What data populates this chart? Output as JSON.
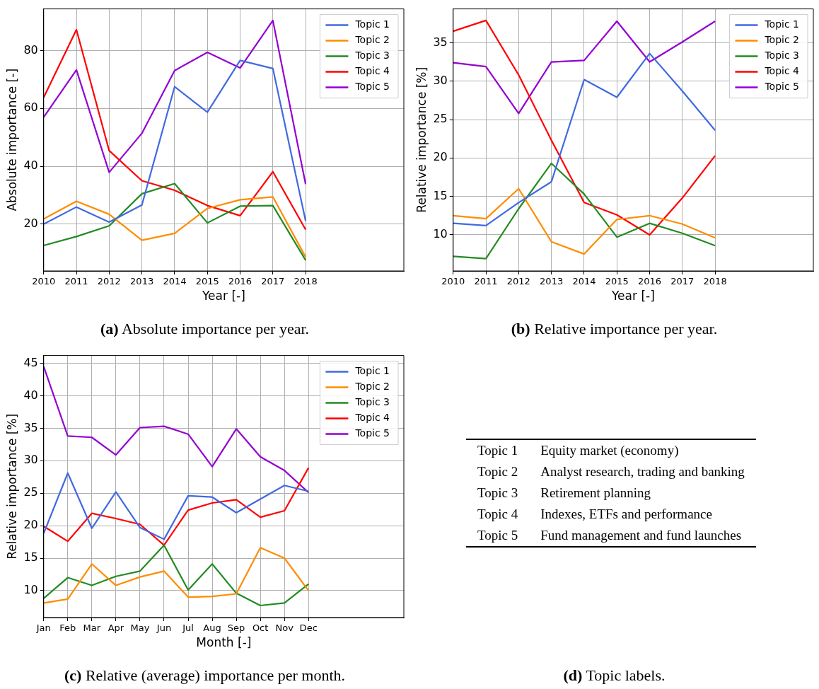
{
  "chart_data": [
    {
      "type": "line",
      "xlabel": "Year [-]",
      "ylabel": "Absolute importance [-]",
      "x": [
        2010,
        2011,
        2012,
        2013,
        2014,
        2015,
        2016,
        2017,
        2018
      ],
      "xlim": [
        2010,
        2021
      ],
      "xticks": [
        2010,
        2011,
        2012,
        2013,
        2014,
        2015,
        2016,
        2017,
        2018
      ],
      "ylim": [
        3.8,
        94.4
      ],
      "yticks": [
        20,
        40,
        60,
        80
      ],
      "grid": true,
      "legend": "top right",
      "annotations": [
        "(a) Absolute importance per year."
      ],
      "series": [
        {
          "name": "Topic 1",
          "color": "#4169e1",
          "values": [
            20.0,
            25.9,
            20.7,
            26.6,
            67.5,
            58.7,
            76.6,
            73.8,
            21.1
          ]
        },
        {
          "name": "Topic 2",
          "color": "#ff8c00",
          "values": [
            21.8,
            27.9,
            23.4,
            14.4,
            16.8,
            25.4,
            28.4,
            29.4,
            8.6
          ]
        },
        {
          "name": "Topic 3",
          "color": "#228b22",
          "values": [
            12.6,
            15.7,
            19.4,
            30.5,
            34.0,
            20.4,
            26.2,
            26.4,
            7.5
          ]
        },
        {
          "name": "Topic 4",
          "color": "#ff0000",
          "values": [
            63.8,
            87.2,
            45.4,
            35.0,
            31.7,
            26.4,
            22.9,
            38.1,
            18.1
          ]
        },
        {
          "name": "Topic 5",
          "color": "#9400d3",
          "values": [
            57.0,
            73.3,
            37.9,
            51.4,
            73.1,
            79.4,
            74.0,
            90.4,
            33.8
          ]
        }
      ]
    },
    {
      "type": "line",
      "xlabel": "Year [-]",
      "ylabel": "Relative importance [%]",
      "x": [
        2010,
        2011,
        2012,
        2013,
        2014,
        2015,
        2016,
        2017,
        2018
      ],
      "xlim": [
        2010,
        2021
      ],
      "xticks": [
        2010,
        2011,
        2012,
        2013,
        2014,
        2015,
        2016,
        2017,
        2018
      ],
      "ylim": [
        5.3,
        39.4
      ],
      "yticks": [
        10,
        15,
        20,
        25,
        30,
        35
      ],
      "grid": true,
      "legend": "top right",
      "annotations": [
        "(b) Relative importance per year."
      ],
      "series": [
        {
          "name": "Topic 1",
          "color": "#4169e1",
          "values": [
            11.5,
            11.2,
            14.2,
            16.9,
            30.2,
            27.9,
            33.6,
            28.7,
            23.6
          ]
        },
        {
          "name": "Topic 2",
          "color": "#ff8c00",
          "values": [
            12.5,
            12.1,
            16.0,
            9.1,
            7.5,
            12.0,
            12.5,
            11.4,
            9.6
          ]
        },
        {
          "name": "Topic 3",
          "color": "#228b22",
          "values": [
            7.2,
            6.9,
            13.4,
            19.3,
            15.3,
            9.7,
            11.5,
            10.2,
            8.6
          ]
        },
        {
          "name": "Topic 4",
          "color": "#ff0000",
          "values": [
            36.5,
            37.9,
            30.8,
            22.3,
            14.2,
            12.6,
            10.0,
            14.8,
            20.3
          ]
        },
        {
          "name": "Topic 5",
          "color": "#9400d3",
          "values": [
            32.4,
            31.9,
            25.8,
            32.5,
            32.7,
            37.8,
            32.5,
            35.1,
            37.8
          ]
        }
      ]
    },
    {
      "type": "line",
      "xlabel": "Month [-]",
      "ylabel": "Relative importance [%]",
      "categories": [
        "Jan",
        "Feb",
        "Mar",
        "Apr",
        "May",
        "Jun",
        "Jul",
        "Aug",
        "Sep",
        "Oct",
        "Nov",
        "Dec"
      ],
      "ylim": [
        5.85,
        46.2
      ],
      "yticks": [
        10,
        15,
        20,
        25,
        30,
        35,
        40,
        45
      ],
      "grid": true,
      "legend": "top right",
      "annotations": [
        "(c) Relative (average) importance per month."
      ],
      "series": [
        {
          "name": "Topic 1",
          "color": "#4169e1",
          "values": [
            18.8,
            28.1,
            19.6,
            25.2,
            19.7,
            17.9,
            24.6,
            24.4,
            22.0,
            24.1,
            26.2,
            25.3
          ]
        },
        {
          "name": "Topic 2",
          "color": "#ff8c00",
          "values": [
            8.1,
            8.7,
            14.1,
            10.8,
            12.1,
            13.0,
            9.0,
            9.1,
            9.5,
            16.6,
            15.0,
            10.0
          ]
        },
        {
          "name": "Topic 3",
          "color": "#228b22",
          "values": [
            8.8,
            12.0,
            10.8,
            12.2,
            13.0,
            17.0,
            10.1,
            14.1,
            9.6,
            7.7,
            8.1,
            11.0
          ]
        },
        {
          "name": "Topic 4",
          "color": "#ff0000",
          "values": [
            19.9,
            17.6,
            21.9,
            21.1,
            20.2,
            17.0,
            22.4,
            23.5,
            24.0,
            21.3,
            22.3,
            28.9
          ]
        },
        {
          "name": "Topic 5",
          "color": "#9400d3",
          "values": [
            44.5,
            33.8,
            33.6,
            30.9,
            35.1,
            35.3,
            34.1,
            29.1,
            34.9,
            30.6,
            28.5,
            25.1
          ]
        }
      ]
    },
    {
      "type": "other",
      "categories": [
        "Topic 1",
        "Topic 2",
        "Topic 3",
        "Topic 4",
        "Topic 5"
      ],
      "annotations": [
        "Equity market (economy)",
        "Analyst research, trading and banking",
        "Retirement planning",
        "Indexes, ETFs and performance",
        "Fund management and fund launches",
        "(d) Topic labels."
      ]
    }
  ]
}
